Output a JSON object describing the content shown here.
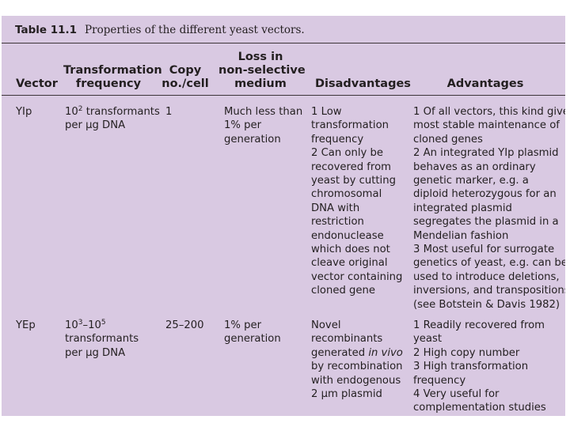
{
  "table": {
    "number": "Table 11.1",
    "title": "Properties of the different yeast vectors.",
    "headers": {
      "vector": "Vector",
      "transformation_line1": "Transformation",
      "transformation_line2": "frequency",
      "copy_line1": "Copy",
      "copy_line2": "no./cell",
      "loss_line1": "Loss in",
      "loss_line2": "non-selective",
      "loss_line3": "medium",
      "disadvantages": "Disadvantages",
      "advantages": "Advantages"
    },
    "rows": [
      {
        "vector": "YIp",
        "transformation": {
          "base": "10",
          "exp": "2",
          "rest": " transformants",
          "line2": "per μg DNA"
        },
        "copy": "1",
        "loss": [
          "Much less than",
          "1% per",
          "generation"
        ],
        "disadvantages": [
          "1 Low",
          "transformation",
          "frequency",
          "2 Can only be",
          "recovered from",
          "yeast by cutting",
          "chromosomal",
          "DNA with",
          "restriction",
          "endonuclease",
          "which does not",
          "cleave original",
          "vector containing",
          "cloned gene"
        ],
        "advantages": [
          "1 Of all vectors, this kind give",
          "most stable maintenance of",
          "cloned genes",
          "2 An integrated YIp plasmid",
          "behaves as an ordinary",
          "genetic marker, e.g. a",
          "diploid heterozygous for an",
          "integrated plasmid",
          "segregates the plasmid in a",
          "Mendelian fashion",
          "3 Most useful for surrogate",
          "genetics of yeast, e.g. can be",
          "used to introduce deletions,",
          "inversions, and transpositions",
          "(see Botstein & Davis 1982)"
        ]
      },
      {
        "vector": "YEp",
        "transformation": {
          "base1": "10",
          "exp1": "3",
          "dash": "–",
          "base2": "10",
          "exp2": "5",
          "line2": "transformants",
          "line3": "per μg DNA"
        },
        "copy": "25–200",
        "loss": [
          "1% per",
          "generation"
        ],
        "disadvantages": {
          "line1": "Novel",
          "line2": "recombinants",
          "line3_pre": "generated ",
          "line3_em": "in vivo",
          "line4": "by recombination",
          "line5": "with endogenous",
          "line6": "2 μm plasmid"
        },
        "advantages": [
          "1 Readily recovered from",
          "yeast",
          "2 High copy number",
          "3 High transformation",
          "frequency",
          "4 Very useful for",
          "complementation studies"
        ]
      }
    ]
  }
}
